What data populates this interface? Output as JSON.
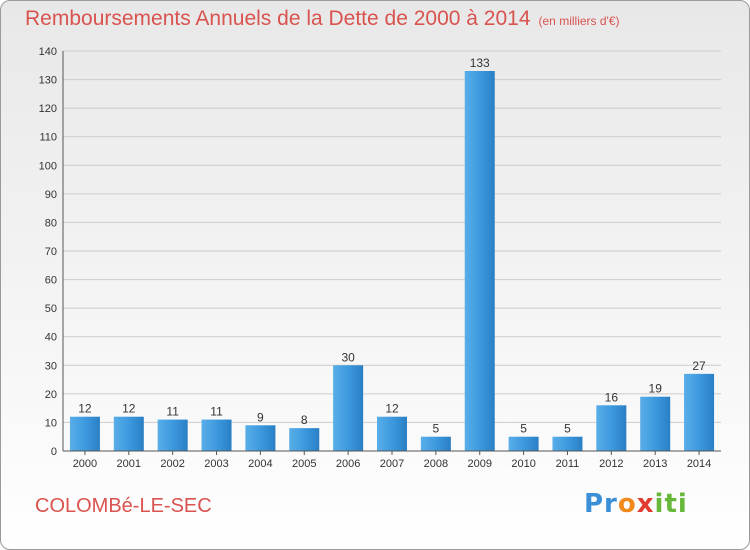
{
  "header": {
    "title": "Remboursements Annuels de la Dette de 2000 à 2014",
    "unit": "(en milliers d'€)"
  },
  "footer": {
    "commune": "COLOMBé-LE-SEC",
    "logo": "Proxiti"
  },
  "colors": {
    "bar": "#3b97dd",
    "title": "#d9534f"
  },
  "chart_data": {
    "type": "bar",
    "categories": [
      "2000",
      "2001",
      "2002",
      "2003",
      "2004",
      "2005",
      "2006",
      "2007",
      "2008",
      "2009",
      "2010",
      "2011",
      "2012",
      "2013",
      "2014"
    ],
    "values": [
      12,
      12,
      11,
      11,
      9,
      8,
      30,
      12,
      5,
      133,
      5,
      5,
      16,
      19,
      27
    ],
    "title": "Remboursements Annuels de la Dette de 2000 à 2014",
    "xlabel": "",
    "ylabel": "",
    "ylim": [
      0,
      140
    ],
    "yticks": [
      0,
      10,
      20,
      30,
      40,
      50,
      60,
      70,
      80,
      90,
      100,
      110,
      120,
      130,
      140
    ],
    "grid": true,
    "legend": "none"
  }
}
